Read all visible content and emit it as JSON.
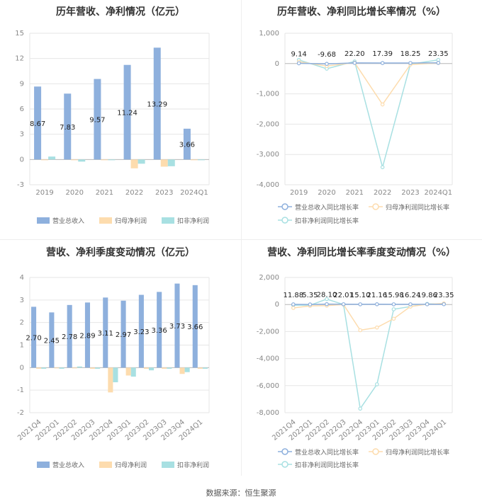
{
  "source": "数据来源：恒生聚源",
  "colors": {
    "rev": "#8eb0dd",
    "np": "#fddcae",
    "dnp": "#a8e0e2",
    "grid": "#e6e6e6",
    "axis": "#999999"
  },
  "chart_data": [
    {
      "type": "bar",
      "title": "历年营收、净利情况（亿元）",
      "categories": [
        "2019",
        "2020",
        "2021",
        "2022",
        "2023",
        "2024Q1"
      ],
      "series": [
        {
          "name": "营业总收入",
          "values": [
            8.67,
            7.83,
            9.57,
            11.24,
            13.29,
            3.66
          ]
        },
        {
          "name": "归母净利润",
          "values": [
            -0.05,
            -0.05,
            -0.06,
            -1.05,
            -0.85,
            -0.05
          ]
        },
        {
          "name": "扣非净利润",
          "values": [
            0.35,
            -0.25,
            -0.03,
            -0.5,
            -0.8,
            -0.03
          ]
        }
      ],
      "labels": [
        "8.67",
        "7.83",
        "9.57",
        "11.24",
        "13.29",
        "3.66"
      ],
      "yticks": [
        "15",
        "12",
        "9",
        "6",
        "3",
        "0",
        "-3"
      ],
      "ylim": [
        -3,
        15
      ]
    },
    {
      "type": "line",
      "title": "历年营收、净利同比增长率情况（%）",
      "categories": [
        "2019",
        "2020",
        "2021",
        "2022",
        "2023",
        "2024Q1"
      ],
      "series": [
        {
          "name": "营业总收入同比增长率",
          "values": [
            9.14,
            -9.68,
            22.2,
            17.39,
            18.25,
            23.35
          ]
        },
        {
          "name": "归母净利润同比增长率",
          "values": [
            60,
            -80,
            30,
            -1350,
            -30,
            20
          ]
        },
        {
          "name": "扣非净利润同比增长率",
          "values": [
            120,
            -170,
            70,
            -3420,
            -20,
            120
          ]
        }
      ],
      "labels": [
        "9.14",
        "-9.68",
        "22.20",
        "17.39",
        "18.25",
        "23.35"
      ],
      "yticks": [
        "1,000",
        "0",
        "-1,000",
        "-2,000",
        "-3,000",
        "-4,000"
      ],
      "ylim": [
        -4000,
        1000
      ]
    },
    {
      "type": "bar",
      "title": "营收、净利季度变动情况（亿元）",
      "categories": [
        "2021Q4",
        "2022Q1",
        "2022Q2",
        "2022Q3",
        "2022Q4",
        "2023Q1",
        "2023Q2",
        "2023Q3",
        "2023Q4",
        "2024Q1"
      ],
      "series": [
        {
          "name": "营业总收入",
          "values": [
            2.7,
            2.45,
            2.78,
            2.89,
            3.11,
            2.97,
            3.23,
            3.36,
            3.73,
            3.66
          ]
        },
        {
          "name": "归母净利润",
          "values": [
            -0.05,
            -0.03,
            -0.02,
            -0.05,
            -1.1,
            -0.35,
            -0.05,
            -0.05,
            -0.28,
            -0.05
          ]
        },
        {
          "name": "扣非净利润",
          "values": [
            -0.05,
            -0.05,
            0.05,
            -0.05,
            -0.65,
            -0.4,
            -0.12,
            -0.05,
            -0.2,
            -0.05
          ]
        }
      ],
      "labels": [
        "2.70",
        "2.45",
        "2.78",
        "2.89",
        "3.11",
        "2.97",
        "3.23",
        "3.36",
        "3.73",
        "3.66"
      ],
      "yticks": [
        "4",
        "3",
        "2",
        "1",
        "0",
        "-1",
        "-2"
      ],
      "ylim": [
        -2,
        4
      ]
    },
    {
      "type": "line",
      "title": "营收、净利同比增长率季度变动情况（%）",
      "categories": [
        "2021Q4",
        "2022Q1",
        "2022Q2",
        "2022Q3",
        "2022Q4",
        "2023Q1",
        "2023Q2",
        "2023Q3",
        "2023Q4",
        "2024Q1"
      ],
      "series": [
        {
          "name": "营业总收入同比增长率",
          "values": [
            11.88,
            5.35,
            28.1,
            22.01,
            15.1,
            21.16,
            15.98,
            16.24,
            19.86,
            23.35
          ]
        },
        {
          "name": "归母净利润同比增长率",
          "values": [
            -250,
            -100,
            -80,
            0,
            -1900,
            -1700,
            -1050,
            -150,
            20,
            80
          ]
        },
        {
          "name": "扣非净利润同比增长率",
          "values": [
            -50,
            -50,
            400,
            0,
            -7700,
            -5900,
            -350,
            -150,
            50,
            50
          ]
        }
      ],
      "labels": [
        "11.88",
        "5.35",
        "28.10",
        "22.01",
        "15.10",
        "21.16",
        "15.98",
        "16.24",
        "19.86",
        "23.35"
      ],
      "yticks": [
        "2,000",
        "0",
        "-2,000",
        "-4,000",
        "-6,000",
        "-8,000"
      ],
      "ylim": [
        -8000,
        2000
      ]
    }
  ]
}
